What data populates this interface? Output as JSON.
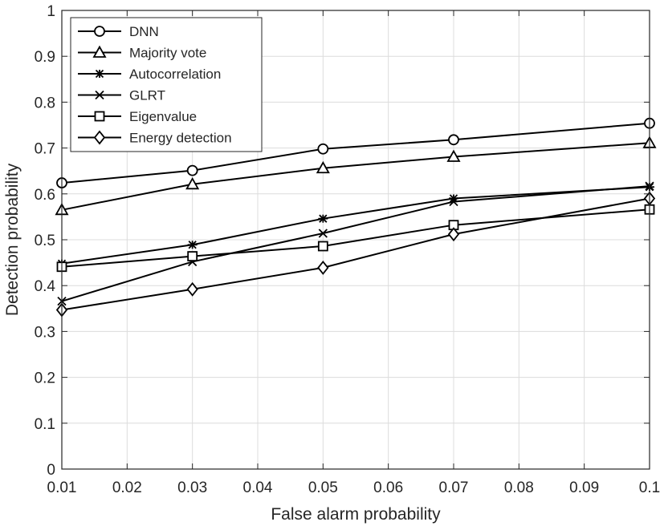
{
  "chart_data": {
    "type": "line",
    "xlabel": "False alarm probability",
    "ylabel": "Detection probability",
    "xlim": [
      0.01,
      0.1
    ],
    "ylim": [
      0,
      1
    ],
    "xticks": [
      "0.01",
      "0.02",
      "0.03",
      "0.04",
      "0.05",
      "0.06",
      "0.07",
      "0.08",
      "0.09",
      "0.1"
    ],
    "yticks": [
      "0",
      "0.1",
      "0.2",
      "0.3",
      "0.4",
      "0.5",
      "0.6",
      "0.7",
      "0.8",
      "0.9",
      "1"
    ],
    "grid": true,
    "legend_position": "top-left",
    "line_color": "#000000",
    "x": [
      0.01,
      0.03,
      0.05,
      0.07,
      0.1
    ],
    "series": [
      {
        "name": "DNN",
        "marker": "circle",
        "values": [
          0.624,
          0.651,
          0.698,
          0.718,
          0.754
        ]
      },
      {
        "name": "Majority vote",
        "marker": "triangle",
        "values": [
          0.565,
          0.621,
          0.656,
          0.681,
          0.711
        ]
      },
      {
        "name": "Autocorrelation",
        "marker": "asterisk",
        "values": [
          0.448,
          0.489,
          0.546,
          0.59,
          0.615
        ]
      },
      {
        "name": "GLRT",
        "marker": "x",
        "values": [
          0.366,
          0.452,
          0.514,
          0.583,
          0.617
        ]
      },
      {
        "name": "Eigenvalue",
        "marker": "square",
        "values": [
          0.441,
          0.464,
          0.486,
          0.532,
          0.566
        ]
      },
      {
        "name": "Energy detection",
        "marker": "diamond",
        "values": [
          0.347,
          0.392,
          0.439,
          0.512,
          0.59
        ]
      }
    ]
  }
}
